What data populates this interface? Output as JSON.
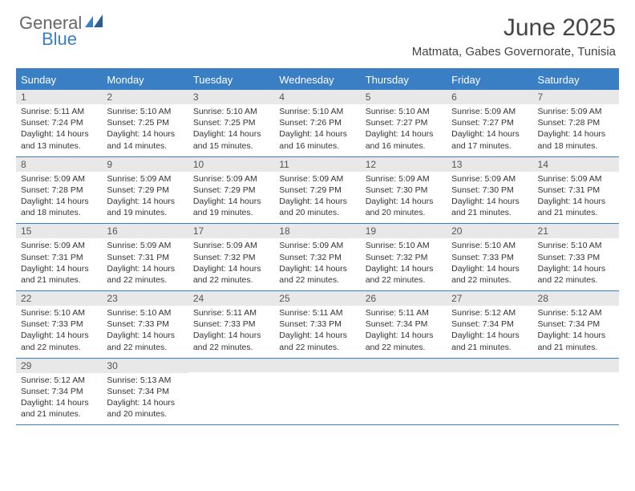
{
  "brand": {
    "word1": "General",
    "word2": "Blue"
  },
  "title": "June 2025",
  "location": "Matmata, Gabes Governorate, Tunisia",
  "colors": {
    "accent": "#3a7fc4",
    "header_bg": "#3a7fc4",
    "header_text": "#ffffff",
    "daynum_bg": "#e8e8e8",
    "text": "#333333",
    "border": "#3a7fc4"
  },
  "day_names": [
    "Sunday",
    "Monday",
    "Tuesday",
    "Wednesday",
    "Thursday",
    "Friday",
    "Saturday"
  ],
  "weeks": [
    [
      {
        "n": "1",
        "sr": "5:11 AM",
        "ss": "7:24 PM",
        "dl": "14 hours and 13 minutes."
      },
      {
        "n": "2",
        "sr": "5:10 AM",
        "ss": "7:25 PM",
        "dl": "14 hours and 14 minutes."
      },
      {
        "n": "3",
        "sr": "5:10 AM",
        "ss": "7:25 PM",
        "dl": "14 hours and 15 minutes."
      },
      {
        "n": "4",
        "sr": "5:10 AM",
        "ss": "7:26 PM",
        "dl": "14 hours and 16 minutes."
      },
      {
        "n": "5",
        "sr": "5:10 AM",
        "ss": "7:27 PM",
        "dl": "14 hours and 16 minutes."
      },
      {
        "n": "6",
        "sr": "5:09 AM",
        "ss": "7:27 PM",
        "dl": "14 hours and 17 minutes."
      },
      {
        "n": "7",
        "sr": "5:09 AM",
        "ss": "7:28 PM",
        "dl": "14 hours and 18 minutes."
      }
    ],
    [
      {
        "n": "8",
        "sr": "5:09 AM",
        "ss": "7:28 PM",
        "dl": "14 hours and 18 minutes."
      },
      {
        "n": "9",
        "sr": "5:09 AM",
        "ss": "7:29 PM",
        "dl": "14 hours and 19 minutes."
      },
      {
        "n": "10",
        "sr": "5:09 AM",
        "ss": "7:29 PM",
        "dl": "14 hours and 19 minutes."
      },
      {
        "n": "11",
        "sr": "5:09 AM",
        "ss": "7:29 PM",
        "dl": "14 hours and 20 minutes."
      },
      {
        "n": "12",
        "sr": "5:09 AM",
        "ss": "7:30 PM",
        "dl": "14 hours and 20 minutes."
      },
      {
        "n": "13",
        "sr": "5:09 AM",
        "ss": "7:30 PM",
        "dl": "14 hours and 21 minutes."
      },
      {
        "n": "14",
        "sr": "5:09 AM",
        "ss": "7:31 PM",
        "dl": "14 hours and 21 minutes."
      }
    ],
    [
      {
        "n": "15",
        "sr": "5:09 AM",
        "ss": "7:31 PM",
        "dl": "14 hours and 21 minutes."
      },
      {
        "n": "16",
        "sr": "5:09 AM",
        "ss": "7:31 PM",
        "dl": "14 hours and 22 minutes."
      },
      {
        "n": "17",
        "sr": "5:09 AM",
        "ss": "7:32 PM",
        "dl": "14 hours and 22 minutes."
      },
      {
        "n": "18",
        "sr": "5:09 AM",
        "ss": "7:32 PM",
        "dl": "14 hours and 22 minutes."
      },
      {
        "n": "19",
        "sr": "5:10 AM",
        "ss": "7:32 PM",
        "dl": "14 hours and 22 minutes."
      },
      {
        "n": "20",
        "sr": "5:10 AM",
        "ss": "7:33 PM",
        "dl": "14 hours and 22 minutes."
      },
      {
        "n": "21",
        "sr": "5:10 AM",
        "ss": "7:33 PM",
        "dl": "14 hours and 22 minutes."
      }
    ],
    [
      {
        "n": "22",
        "sr": "5:10 AM",
        "ss": "7:33 PM",
        "dl": "14 hours and 22 minutes."
      },
      {
        "n": "23",
        "sr": "5:10 AM",
        "ss": "7:33 PM",
        "dl": "14 hours and 22 minutes."
      },
      {
        "n": "24",
        "sr": "5:11 AM",
        "ss": "7:33 PM",
        "dl": "14 hours and 22 minutes."
      },
      {
        "n": "25",
        "sr": "5:11 AM",
        "ss": "7:33 PM",
        "dl": "14 hours and 22 minutes."
      },
      {
        "n": "26",
        "sr": "5:11 AM",
        "ss": "7:34 PM",
        "dl": "14 hours and 22 minutes."
      },
      {
        "n": "27",
        "sr": "5:12 AM",
        "ss": "7:34 PM",
        "dl": "14 hours and 21 minutes."
      },
      {
        "n": "28",
        "sr": "5:12 AM",
        "ss": "7:34 PM",
        "dl": "14 hours and 21 minutes."
      }
    ],
    [
      {
        "n": "29",
        "sr": "5:12 AM",
        "ss": "7:34 PM",
        "dl": "14 hours and 21 minutes."
      },
      {
        "n": "30",
        "sr": "5:13 AM",
        "ss": "7:34 PM",
        "dl": "14 hours and 20 minutes."
      },
      null,
      null,
      null,
      null,
      null
    ]
  ],
  "labels": {
    "sunrise": "Sunrise:",
    "sunset": "Sunset:",
    "daylight": "Daylight:"
  }
}
